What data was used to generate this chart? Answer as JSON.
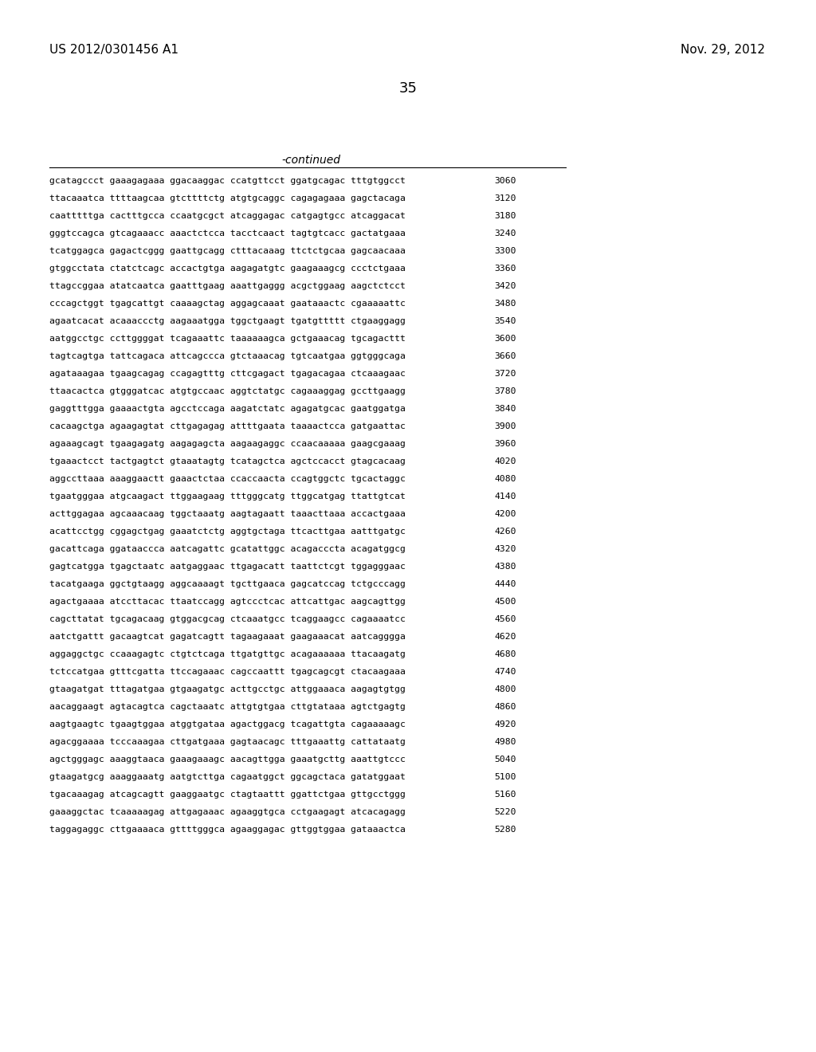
{
  "header_left": "US 2012/0301456 A1",
  "header_right": "Nov. 29, 2012",
  "page_number": "35",
  "continued_label": "-continued",
  "background_color": "#ffffff",
  "text_color": "#000000",
  "font_size_header": 11,
  "font_size_page": 13,
  "font_size_continued": 10,
  "font_size_sequence": 8.2,
  "sequence_lines": [
    [
      "gcatagccct gaaagagaaa ggacaaggac ccatgttcct ggatgcagac tttgtggcct",
      "3060"
    ],
    [
      "ttacaaatca ttttaagcaa gtcttttctg atgtgcaggc cagagagaaa gagctacaga",
      "3120"
    ],
    [
      "caatttttga cactttgcca ccaatgcgct atcaggagac catgagtgcc atcaggacat",
      "3180"
    ],
    [
      "gggtccagca gtcagaaacc aaactctcca tacctcaact tagtgtcacc gactatgaaa",
      "3240"
    ],
    [
      "tcatggagca gagactcggg gaattgcagg ctttacaaag ttctctgcaa gagcaacaaa",
      "3300"
    ],
    [
      "gtggcctata ctatctcagc accactgtga aagagatgtc gaagaaagcg ccctctgaaa",
      "3360"
    ],
    [
      "ttagccggaa atatcaatca gaatttgaag aaattgaggg acgctggaag aagctctcct",
      "3420"
    ],
    [
      "cccagctggt tgagcattgt caaaagctag aggagcaaat gaataaactc cgaaaaattc",
      "3480"
    ],
    [
      "agaatcacat acaaaccctg aagaaatgga tggctgaagt tgatgttttt ctgaaggagg",
      "3540"
    ],
    [
      "aatggcctgc ccttggggat tcagaaattc taaaaaagca gctgaaacag tgcagacttt",
      "3600"
    ],
    [
      "tagtcagtga tattcagaca attcagccca gtctaaacag tgtcaatgaa ggtgggcaga",
      "3660"
    ],
    [
      "agataaagaa tgaagcagag ccagagtttg cttcgagact tgagacagaa ctcaaagaac",
      "3720"
    ],
    [
      "ttaacactca gtgggatcac atgtgccaac aggtctatgc cagaaaggag gccttgaagg",
      "3780"
    ],
    [
      "gaggtttgga gaaaactgta agcctccaga aagatctatc agagatgcac gaatggatga",
      "3840"
    ],
    [
      "cacaagctga agaagagtat cttgagagag attttgaata taaaactcca gatgaattac",
      "3900"
    ],
    [
      "agaaagcagt tgaagagatg aagagagcta aagaagaggc ccaacaaaaa gaagcgaaag",
      "3960"
    ],
    [
      "tgaaactcct tactgagtct gtaaatagtg tcatagctca agctccacct gtagcacaag",
      "4020"
    ],
    [
      "aggccttaaa aaaggaactt gaaactctaa ccaccaacta ccagtggctc tgcactaggc",
      "4080"
    ],
    [
      "tgaatgggaa atgcaagact ttggaagaag tttgggcatg ttggcatgag ttattgtcat",
      "4140"
    ],
    [
      "acttggagaa agcaaacaag tggctaaatg aagtagaatt taaacttaaa accactgaaa",
      "4200"
    ],
    [
      "acattcctgg cggagctgag gaaatctctg aggtgctaga ttcacttgaa aatttgatgc",
      "4260"
    ],
    [
      "gacattcaga ggataaccca aatcagattc gcatattggc acagacccta acagatggcg",
      "4320"
    ],
    [
      "gagtcatgga tgagctaatc aatgaggaac ttgagacatt taattctcgt tggagggaac",
      "4380"
    ],
    [
      "tacatgaaga ggctgtaagg aggcaaaagt tgcttgaaca gagcatccag tctgcccagg",
      "4440"
    ],
    [
      "agactgaaaa atccttacac ttaatccagg agtccctcac attcattgac aagcagttgg",
      "4500"
    ],
    [
      "cagcttatat tgcagacaag gtggacgcag ctcaaatgcc tcaggaagcc cagaaaatcc",
      "4560"
    ],
    [
      "aatctgattt gacaagtcat gagatcagtt tagaagaaat gaagaaacat aatcagggga",
      "4620"
    ],
    [
      "aggaggctgc ccaaagagtc ctgtctcaga ttgatgttgc acagaaaaaa ttacaagatg",
      "4680"
    ],
    [
      "tctccatgaa gtttcgatta ttccagaaac cagccaattt tgagcagcgt ctacaagaaa",
      "4740"
    ],
    [
      "gtaagatgat tttagatgaa gtgaagatgc acttgcctgc attggaaaca aagagtgtgg",
      "4800"
    ],
    [
      "aacaggaagt agtacagtca cagctaaatc attgtgtgaa cttgtataaa agtctgagtg",
      "4860"
    ],
    [
      "aagtgaagtc tgaagtggaa atggtgataa agactggacg tcagattgta cagaaaaagc",
      "4920"
    ],
    [
      "agacggaaaa tcccaaagaa cttgatgaaa gagtaacagc tttgaaattg cattataatg",
      "4980"
    ],
    [
      "agctgggagc aaaggtaaca gaaagaaagc aacagttgga gaaatgcttg aaattgtccc",
      "5040"
    ],
    [
      "gtaagatgcg aaaggaaatg aatgtcttga cagaatggct ggcagctaca gatatggaat",
      "5100"
    ],
    [
      "tgacaaagag atcagcagtt gaaggaatgc ctagtaattt ggattctgaa gttgcctggg",
      "5160"
    ],
    [
      "gaaaggctac tcaaaaagag attgagaaac agaaggtgca cctgaagagt atcacagagg",
      "5220"
    ],
    [
      "taggagaggc cttgaaaaca gttttgggca agaaggagac gttggtggaa gataaactca",
      "5280"
    ]
  ]
}
